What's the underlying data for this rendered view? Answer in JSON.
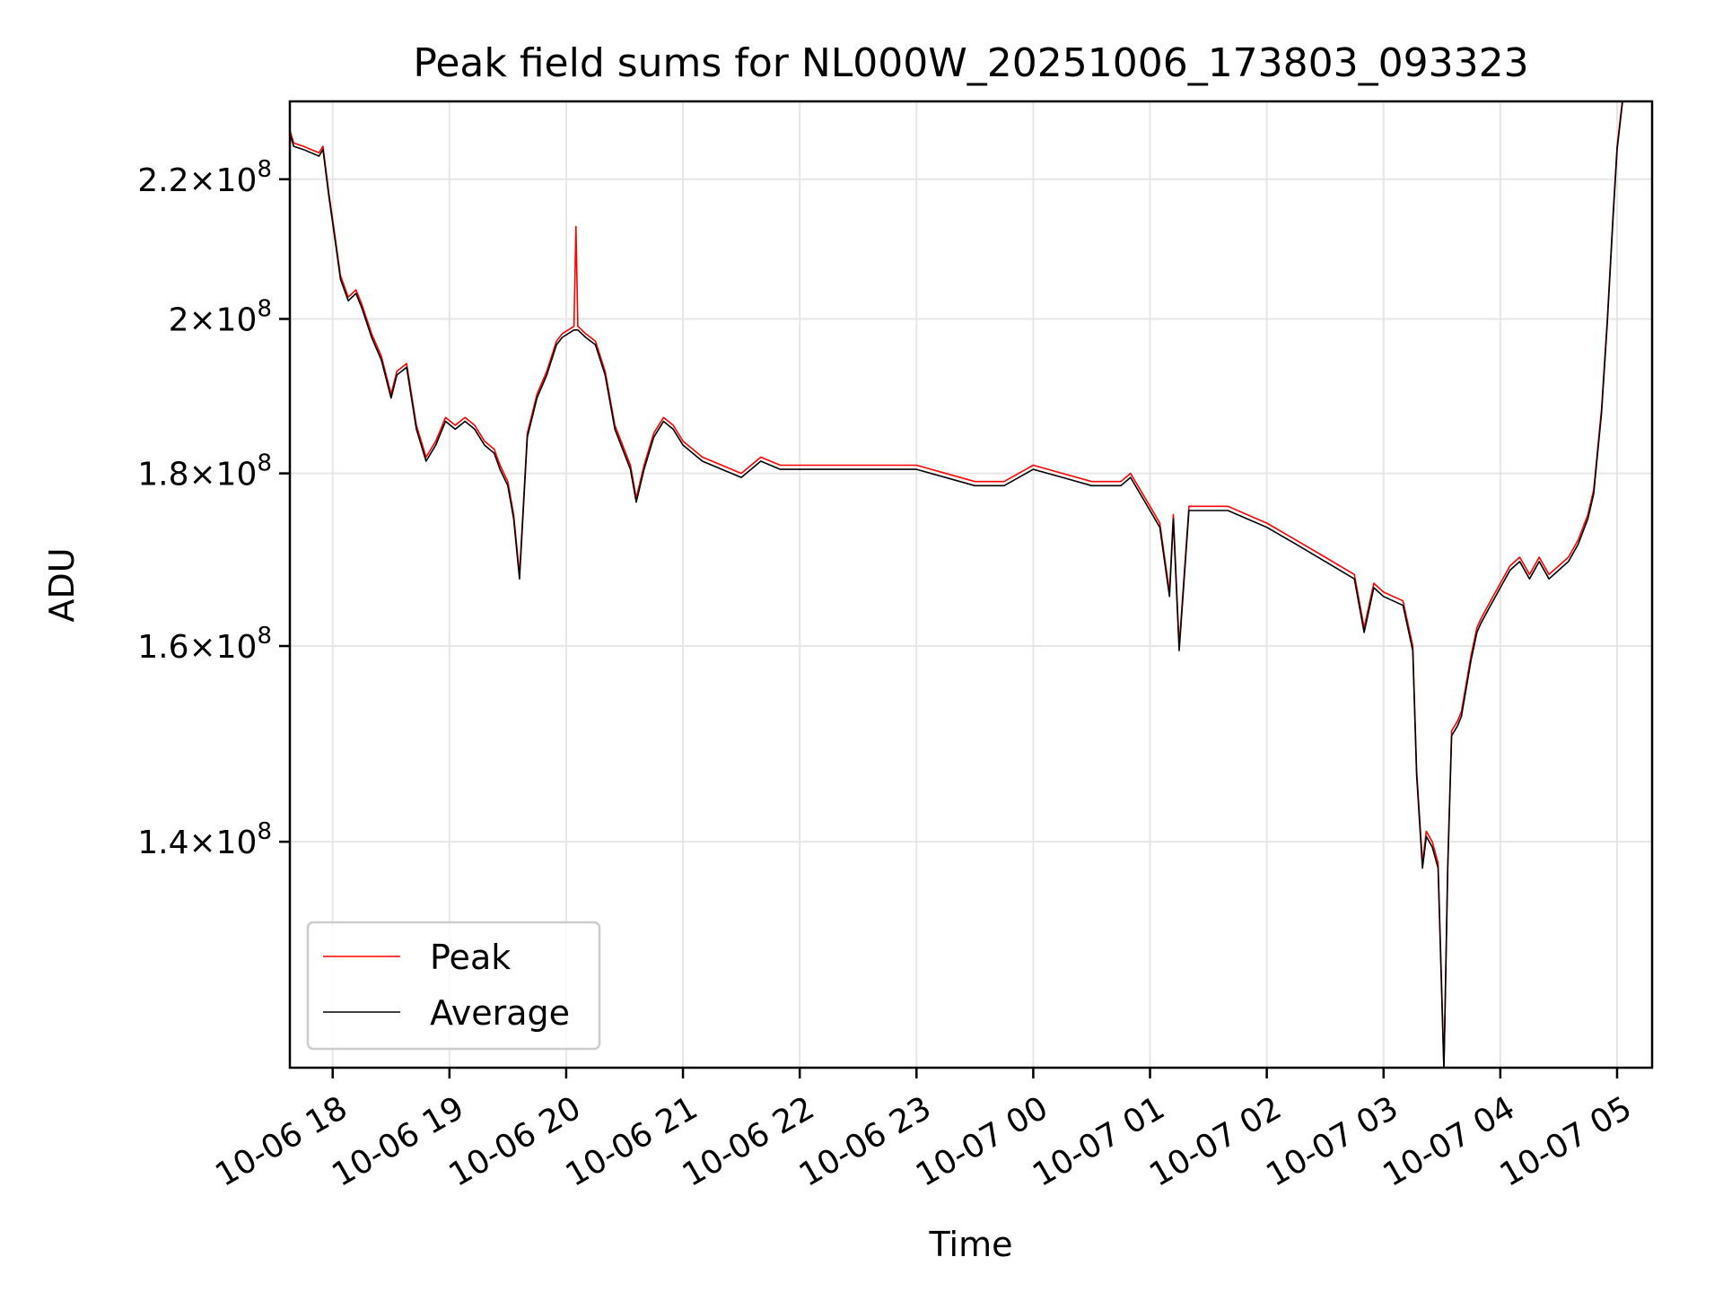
{
  "chart_data": {
    "type": "line",
    "title": "Peak field sums for NL000W_20251006_173803_093323",
    "xlabel": "Time",
    "ylabel": "ADU",
    "y_scale": "log",
    "grid": true,
    "legend_position": "bottom-left",
    "xlim": [
      "2025-10-06 17:38",
      "2025-10-07 05:18"
    ],
    "ylim": [
      120000000,
      232000000
    ],
    "x_ticks": [
      "10-06 18",
      "10-06 19",
      "10-06 20",
      "10-06 21",
      "10-06 22",
      "10-06 23",
      "10-07 00",
      "10-07 01",
      "10-07 02",
      "10-07 03",
      "10-07 04",
      "10-07 05"
    ],
    "x_tick_times": [
      "2025-10-06 18:00",
      "2025-10-06 19:00",
      "2025-10-06 20:00",
      "2025-10-06 21:00",
      "2025-10-06 22:00",
      "2025-10-06 23:00",
      "2025-10-07 00:00",
      "2025-10-07 01:00",
      "2025-10-07 02:00",
      "2025-10-07 03:00",
      "2025-10-07 04:00",
      "2025-10-07 05:00"
    ],
    "y_ticks": [
      {
        "value": 140000000,
        "mantissa": "1.4",
        "exponent": "8"
      },
      {
        "value": 160000000,
        "mantissa": "1.6",
        "exponent": "8"
      },
      {
        "value": 180000000,
        "mantissa": "1.8",
        "exponent": "8"
      },
      {
        "value": 200000000,
        "mantissa": "2",
        "exponent": "8"
      },
      {
        "value": 220000000,
        "mantissa": "2.2",
        "exponent": "8"
      }
    ],
    "series": [
      {
        "name": "Peak",
        "color": "#ff0000",
        "x": [
          "2025-10-06 17:38",
          "2025-10-06 17:40",
          "2025-10-06 17:45",
          "2025-10-06 17:53",
          "2025-10-06 17:55",
          "2025-10-06 17:58",
          "2025-10-06 18:01",
          "2025-10-06 18:04",
          "2025-10-06 18:08",
          "2025-10-06 18:12",
          "2025-10-06 18:15",
          "2025-10-06 18:20",
          "2025-10-06 18:25",
          "2025-10-06 18:30",
          "2025-10-06 18:33",
          "2025-10-06 18:38",
          "2025-10-06 18:43",
          "2025-10-06 18:48",
          "2025-10-06 18:53",
          "2025-10-06 18:58",
          "2025-10-06 19:03",
          "2025-10-06 19:08",
          "2025-10-06 19:13",
          "2025-10-06 19:18",
          "2025-10-06 19:23",
          "2025-10-06 19:26",
          "2025-10-06 19:30",
          "2025-10-06 19:33",
          "2025-10-06 19:36",
          "2025-10-06 19:40",
          "2025-10-06 19:45",
          "2025-10-06 19:50",
          "2025-10-06 19:55",
          "2025-10-06 19:58",
          "2025-10-06 20:04",
          "2025-10-06 20:05",
          "2025-10-06 20:06",
          "2025-10-06 20:10",
          "2025-10-06 20:15",
          "2025-10-06 20:20",
          "2025-10-06 20:25",
          "2025-10-06 20:33",
          "2025-10-06 20:36",
          "2025-10-06 20:40",
          "2025-10-06 20:45",
          "2025-10-06 20:50",
          "2025-10-06 20:55",
          "2025-10-06 21:00",
          "2025-10-06 21:10",
          "2025-10-06 21:20",
          "2025-10-06 21:30",
          "2025-10-06 21:40",
          "2025-10-06 21:50",
          "2025-10-06 22:00",
          "2025-10-06 22:20",
          "2025-10-06 22:40",
          "2025-10-06 23:00",
          "2025-10-06 23:30",
          "2025-10-06 23:45",
          "2025-10-07 00:00",
          "2025-10-07 00:15",
          "2025-10-07 00:30",
          "2025-10-07 00:45",
          "2025-10-07 00:50",
          "2025-10-07 01:00",
          "2025-10-07 01:05",
          "2025-10-07 01:10",
          "2025-10-07 01:12",
          "2025-10-07 01:15",
          "2025-10-07 01:20",
          "2025-10-07 01:40",
          "2025-10-07 02:00",
          "2025-10-07 02:15",
          "2025-10-07 02:30",
          "2025-10-07 02:45",
          "2025-10-07 02:50",
          "2025-10-07 02:55",
          "2025-10-07 03:00",
          "2025-10-07 03:10",
          "2025-10-07 03:15",
          "2025-10-07 03:17",
          "2025-10-07 03:20",
          "2025-10-07 03:22",
          "2025-10-07 03:25",
          "2025-10-07 03:28",
          "2025-10-07 03:30",
          "2025-10-07 03:31",
          "2025-10-07 03:33",
          "2025-10-07 03:35",
          "2025-10-07 03:38",
          "2025-10-07 03:40",
          "2025-10-07 03:45",
          "2025-10-07 03:48",
          "2025-10-07 03:50",
          "2025-10-07 03:55",
          "2025-10-07 04:00",
          "2025-10-07 04:05",
          "2025-10-07 04:10",
          "2025-10-07 04:15",
          "2025-10-07 04:20",
          "2025-10-07 04:25",
          "2025-10-07 04:30",
          "2025-10-07 04:35",
          "2025-10-07 04:40",
          "2025-10-07 04:45",
          "2025-10-07 04:48",
          "2025-10-07 04:50",
          "2025-10-07 04:52",
          "2025-10-07 04:55",
          "2025-10-07 04:58",
          "2025-10-07 05:00",
          "2025-10-07 05:03"
        ],
        "y": [
          227500000,
          225500000,
          225000000,
          224000000,
          225000000,
          218000000,
          212000000,
          206000000,
          203000000,
          204000000,
          202000000,
          198000000,
          195000000,
          190000000,
          193000000,
          194000000,
          186000000,
          182000000,
          184000000,
          187000000,
          186000000,
          187000000,
          186000000,
          184000000,
          183000000,
          181000000,
          179000000,
          175000000,
          168000000,
          185000000,
          190000000,
          193000000,
          197000000,
          198000000,
          199000000,
          213000000,
          199000000,
          198000000,
          197000000,
          193000000,
          186000000,
          181000000,
          177000000,
          181000000,
          185000000,
          187000000,
          186000000,
          184000000,
          182000000,
          181000000,
          180000000,
          182000000,
          181000000,
          181000000,
          181000000,
          181000000,
          181000000,
          179000000,
          179000000,
          181000000,
          180000000,
          179000000,
          179000000,
          180000000,
          176000000,
          174000000,
          166000000,
          175000000,
          160000000,
          176000000,
          176000000,
          174000000,
          172000000,
          170000000,
          168000000,
          162000000,
          167000000,
          166000000,
          165000000,
          160000000,
          147000000,
          138000000,
          141000000,
          140000000,
          138000000,
          126000000,
          120000000,
          138000000,
          151000000,
          152000000,
          153000000,
          159000000,
          162000000,
          163000000,
          165000000,
          167000000,
          169000000,
          170000000,
          168000000,
          170000000,
          168000000,
          169000000,
          170000000,
          172000000,
          175000000,
          178000000,
          183000000,
          188000000,
          200000000,
          215000000,
          225000000,
          233000000
        ]
      },
      {
        "name": "Average",
        "color": "#000000",
        "x": [
          "2025-10-06 17:38",
          "2025-10-06 17:40",
          "2025-10-06 17:45",
          "2025-10-06 17:53",
          "2025-10-06 17:55",
          "2025-10-06 17:58",
          "2025-10-06 18:01",
          "2025-10-06 18:04",
          "2025-10-06 18:08",
          "2025-10-06 18:12",
          "2025-10-06 18:15",
          "2025-10-06 18:20",
          "2025-10-06 18:25",
          "2025-10-06 18:30",
          "2025-10-06 18:33",
          "2025-10-06 18:38",
          "2025-10-06 18:43",
          "2025-10-06 18:48",
          "2025-10-06 18:53",
          "2025-10-06 18:58",
          "2025-10-06 19:03",
          "2025-10-06 19:08",
          "2025-10-06 19:13",
          "2025-10-06 19:18",
          "2025-10-06 19:23",
          "2025-10-06 19:26",
          "2025-10-06 19:30",
          "2025-10-06 19:33",
          "2025-10-06 19:36",
          "2025-10-06 19:40",
          "2025-10-06 19:45",
          "2025-10-06 19:50",
          "2025-10-06 19:55",
          "2025-10-06 19:58",
          "2025-10-06 20:04",
          "2025-10-06 20:05",
          "2025-10-06 20:06",
          "2025-10-06 20:10",
          "2025-10-06 20:15",
          "2025-10-06 20:20",
          "2025-10-06 20:25",
          "2025-10-06 20:33",
          "2025-10-06 20:36",
          "2025-10-06 20:40",
          "2025-10-06 20:45",
          "2025-10-06 20:50",
          "2025-10-06 20:55",
          "2025-10-06 21:00",
          "2025-10-06 21:10",
          "2025-10-06 21:20",
          "2025-10-06 21:30",
          "2025-10-06 21:40",
          "2025-10-06 21:50",
          "2025-10-06 22:00",
          "2025-10-06 22:20",
          "2025-10-06 22:40",
          "2025-10-06 23:00",
          "2025-10-06 23:30",
          "2025-10-06 23:45",
          "2025-10-07 00:00",
          "2025-10-07 00:15",
          "2025-10-07 00:30",
          "2025-10-07 00:45",
          "2025-10-07 00:50",
          "2025-10-07 01:00",
          "2025-10-07 01:05",
          "2025-10-07 01:10",
          "2025-10-07 01:12",
          "2025-10-07 01:15",
          "2025-10-07 01:20",
          "2025-10-07 01:40",
          "2025-10-07 02:00",
          "2025-10-07 02:15",
          "2025-10-07 02:30",
          "2025-10-07 02:45",
          "2025-10-07 02:50",
          "2025-10-07 02:55",
          "2025-10-07 03:00",
          "2025-10-07 03:10",
          "2025-10-07 03:15",
          "2025-10-07 03:17",
          "2025-10-07 03:20",
          "2025-10-07 03:22",
          "2025-10-07 03:25",
          "2025-10-07 03:28",
          "2025-10-07 03:30",
          "2025-10-07 03:31",
          "2025-10-07 03:33",
          "2025-10-07 03:35",
          "2025-10-07 03:38",
          "2025-10-07 03:40",
          "2025-10-07 03:45",
          "2025-10-07 03:48",
          "2025-10-07 03:50",
          "2025-10-07 03:55",
          "2025-10-07 04:00",
          "2025-10-07 04:05",
          "2025-10-07 04:10",
          "2025-10-07 04:15",
          "2025-10-07 04:20",
          "2025-10-07 04:25",
          "2025-10-07 04:30",
          "2025-10-07 04:35",
          "2025-10-07 04:40",
          "2025-10-07 04:45",
          "2025-10-07 04:48",
          "2025-10-07 04:50",
          "2025-10-07 04:52",
          "2025-10-07 04:55",
          "2025-10-07 04:58",
          "2025-10-07 05:00",
          "2025-10-07 05:03"
        ],
        "y": [
          227000000,
          225000000,
          224500000,
          223500000,
          224500000,
          217500000,
          211500000,
          205500000,
          202500000,
          203500000,
          201500000,
          197500000,
          194500000,
          189500000,
          192500000,
          193500000,
          185500000,
          181500000,
          183500000,
          186500000,
          185500000,
          186500000,
          185500000,
          183500000,
          182500000,
          180500000,
          178500000,
          174500000,
          167500000,
          184500000,
          189500000,
          192500000,
          196500000,
          197500000,
          198500000,
          198500000,
          198500000,
          197500000,
          196500000,
          192500000,
          185500000,
          180500000,
          176500000,
          180500000,
          184500000,
          186500000,
          185500000,
          183500000,
          181500000,
          180500000,
          179500000,
          181500000,
          180500000,
          180500000,
          180500000,
          180500000,
          180500000,
          178500000,
          178500000,
          180500000,
          179500000,
          178500000,
          178500000,
          179500000,
          175500000,
          173500000,
          165500000,
          174500000,
          159500000,
          175500000,
          175500000,
          173500000,
          171500000,
          169500000,
          167500000,
          161500000,
          166500000,
          165500000,
          164500000,
          159500000,
          146500000,
          137500000,
          140500000,
          139500000,
          137500000,
          125500000,
          119800000,
          137500000,
          150500000,
          151500000,
          152500000,
          158500000,
          161500000,
          162500000,
          164500000,
          166500000,
          168500000,
          169500000,
          167500000,
          169500000,
          167500000,
          168500000,
          169500000,
          171500000,
          174500000,
          177500000,
          182500000,
          187500000,
          199500000,
          214500000,
          224500000,
          232500000
        ]
      }
    ]
  }
}
